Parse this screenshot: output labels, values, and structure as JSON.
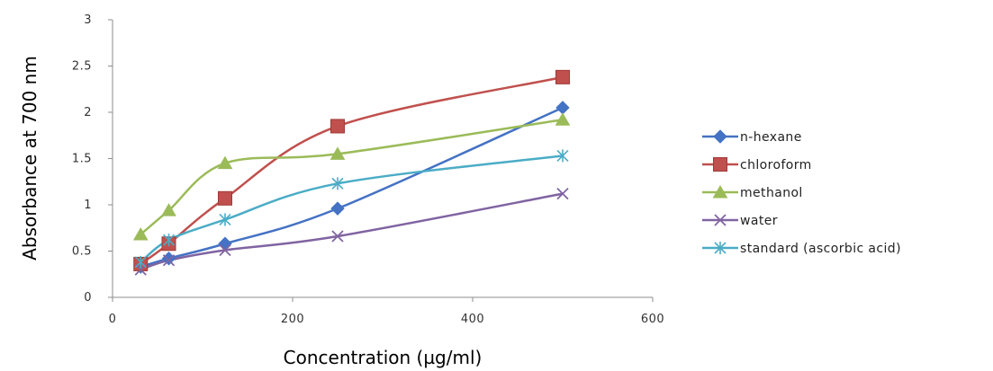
{
  "chart_data": {
    "type": "line",
    "title": "",
    "xlabel": "Concentration (µg/ml)",
    "ylabel": "Absorbance at 700 nm",
    "xlim": [
      0,
      600
    ],
    "ylim": [
      0,
      3
    ],
    "x_ticks": [
      "0",
      "200",
      "400",
      "600"
    ],
    "y_ticks": [
      "0",
      "0.5",
      "1",
      "1.5",
      "2",
      "2.5",
      "3"
    ],
    "grid": false,
    "legend_position": "right",
    "series": [
      {
        "name": "n-hexane",
        "color": "#4472C4",
        "marker": "diamond",
        "x": [
          31.25,
          62.5,
          125,
          250,
          500
        ],
        "y": [
          0.33,
          0.42,
          0.58,
          0.96,
          2.05
        ]
      },
      {
        "name": "chloroform",
        "color": "#C0504D",
        "marker": "square",
        "x": [
          31.25,
          62.5,
          125,
          250,
          500
        ],
        "y": [
          0.36,
          0.58,
          1.07,
          1.85,
          2.38
        ]
      },
      {
        "name": "methanol",
        "color": "#9BBB59",
        "marker": "triangle",
        "x": [
          31.25,
          62.5,
          125,
          250,
          500
        ],
        "y": [
          0.68,
          0.94,
          1.45,
          1.55,
          1.92
        ]
      },
      {
        "name": "water",
        "color": "#8064A2",
        "marker": "x",
        "x": [
          31.25,
          62.5,
          125,
          250,
          500
        ],
        "y": [
          0.3,
          0.4,
          0.51,
          0.66,
          1.12
        ]
      },
      {
        "name": "standard (ascorbic acid)",
        "color": "#4BACC6",
        "marker": "star",
        "x": [
          31.25,
          62.5,
          125,
          250,
          500
        ],
        "y": [
          0.38,
          0.62,
          0.84,
          1.23,
          1.53
        ]
      }
    ]
  }
}
